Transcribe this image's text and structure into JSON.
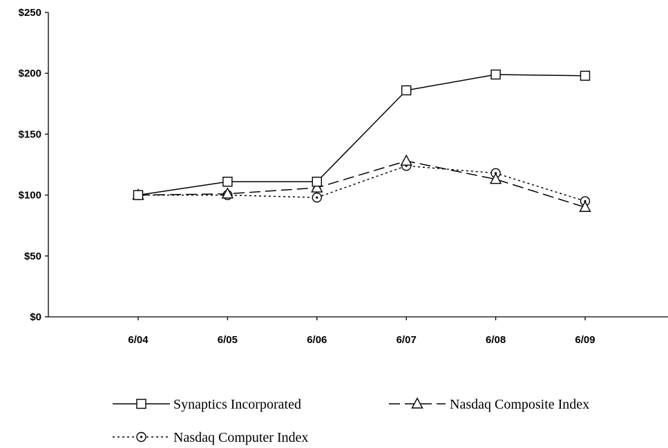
{
  "chart_data": {
    "type": "line",
    "categories": [
      "6/04",
      "6/05",
      "6/06",
      "6/07",
      "6/08",
      "6/09"
    ],
    "y_ticks": [
      "$0",
      "$50",
      "$100",
      "$150",
      "$200",
      "$250"
    ],
    "ylim": [
      0,
      250
    ],
    "grid": false,
    "legend_position": "bottom",
    "series": [
      {
        "name": "Synaptics Incorporated",
        "marker": "square",
        "line_style": "solid",
        "values": [
          100,
          111,
          111,
          186,
          199,
          198
        ]
      },
      {
        "name": "Nasdaq Composite Index",
        "marker": "triangle",
        "line_style": "dashed",
        "values": [
          100,
          101,
          106,
          128,
          113,
          90
        ]
      },
      {
        "name": "Nasdaq Computer Index",
        "marker": "circle",
        "line_style": "dotted",
        "values": [
          100,
          100,
          98,
          124,
          118,
          95
        ]
      }
    ],
    "colors": {
      "line": "#000000",
      "background": "#ffffff"
    }
  }
}
